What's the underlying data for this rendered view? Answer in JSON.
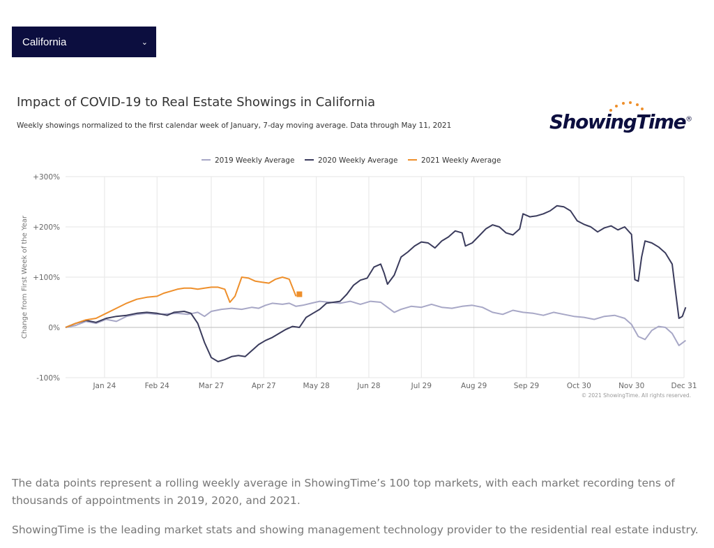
{
  "region_select": {
    "value": "California"
  },
  "header": {
    "title": "Impact of COVID-19 to Real Estate Showings in California",
    "subtitle": "Weekly showings normalized to the first calendar week of January, 7-day moving average. Data through May 11, 2021"
  },
  "logo": {
    "text": "ShowingTime",
    "mark": "®"
  },
  "colors": {
    "s2019": "#a7a7c6",
    "s2020": "#3a3b5c",
    "s2021": "#ee8f2b",
    "grid": "#e6e6e6",
    "select_bg": "#0c0e3f"
  },
  "chart_data": {
    "type": "line",
    "ylabel": "Change from First Week of the Year",
    "ylim": [
      -100,
      300
    ],
    "yticks": [
      "+300%",
      "+200%",
      "+100%",
      "0%",
      "-100%"
    ],
    "ytick_values": [
      300,
      200,
      100,
      0,
      -100
    ],
    "xlim": [
      0,
      365
    ],
    "xticks": [
      "Jan 24",
      "Feb 24",
      "Mar 27",
      "Apr 27",
      "May 28",
      "Jun 28",
      "Jul 29",
      "Aug 29",
      "Sep 29",
      "Oct 30",
      "Nov 30",
      "Dec 31"
    ],
    "xtick_days": [
      23,
      54,
      86,
      117,
      148,
      179,
      210,
      241,
      272,
      303,
      334,
      365
    ],
    "credit": "© 2021 ShowingTime. All rights reserved.",
    "grid": true,
    "legend": "top-center",
    "series": [
      {
        "name": "2019 Weekly Average",
        "points": [
          [
            0,
            0
          ],
          [
            6,
            4
          ],
          [
            12,
            12
          ],
          [
            18,
            8
          ],
          [
            24,
            16
          ],
          [
            30,
            12
          ],
          [
            36,
            22
          ],
          [
            42,
            26
          ],
          [
            48,
            28
          ],
          [
            54,
            26
          ],
          [
            60,
            27
          ],
          [
            66,
            28
          ],
          [
            72,
            26
          ],
          [
            78,
            30
          ],
          [
            82,
            22
          ],
          [
            86,
            32
          ],
          [
            92,
            36
          ],
          [
            98,
            38
          ],
          [
            104,
            36
          ],
          [
            110,
            40
          ],
          [
            114,
            38
          ],
          [
            118,
            44
          ],
          [
            122,
            48
          ],
          [
            128,
            46
          ],
          [
            132,
            48
          ],
          [
            136,
            42
          ],
          [
            140,
            44
          ],
          [
            145,
            48
          ],
          [
            150,
            52
          ],
          [
            156,
            50
          ],
          [
            162,
            48
          ],
          [
            168,
            52
          ],
          [
            174,
            46
          ],
          [
            180,
            52
          ],
          [
            186,
            50
          ],
          [
            190,
            40
          ],
          [
            194,
            30
          ],
          [
            198,
            36
          ],
          [
            204,
            42
          ],
          [
            210,
            40
          ],
          [
            216,
            46
          ],
          [
            222,
            40
          ],
          [
            228,
            38
          ],
          [
            234,
            42
          ],
          [
            240,
            44
          ],
          [
            246,
            40
          ],
          [
            252,
            30
          ],
          [
            258,
            26
          ],
          [
            264,
            34
          ],
          [
            270,
            30
          ],
          [
            276,
            28
          ],
          [
            282,
            24
          ],
          [
            288,
            30
          ],
          [
            294,
            26
          ],
          [
            300,
            22
          ],
          [
            306,
            20
          ],
          [
            312,
            16
          ],
          [
            318,
            22
          ],
          [
            324,
            24
          ],
          [
            330,
            18
          ],
          [
            334,
            6
          ],
          [
            338,
            -18
          ],
          [
            342,
            -24
          ],
          [
            346,
            -6
          ],
          [
            350,
            2
          ],
          [
            354,
            0
          ],
          [
            358,
            -12
          ],
          [
            362,
            -36
          ],
          [
            366,
            -26
          ]
        ]
      },
      {
        "name": "2020 Weekly Average",
        "points": [
          [
            0,
            0
          ],
          [
            6,
            8
          ],
          [
            12,
            14
          ],
          [
            18,
            10
          ],
          [
            24,
            18
          ],
          [
            30,
            22
          ],
          [
            36,
            24
          ],
          [
            42,
            28
          ],
          [
            48,
            30
          ],
          [
            54,
            28
          ],
          [
            60,
            24
          ],
          [
            64,
            30
          ],
          [
            70,
            32
          ],
          [
            74,
            28
          ],
          [
            78,
            8
          ],
          [
            82,
            -30
          ],
          [
            86,
            -60
          ],
          [
            90,
            -68
          ],
          [
            94,
            -64
          ],
          [
            98,
            -58
          ],
          [
            102,
            -56
          ],
          [
            106,
            -58
          ],
          [
            110,
            -46
          ],
          [
            114,
            -34
          ],
          [
            118,
            -26
          ],
          [
            122,
            -20
          ],
          [
            126,
            -12
          ],
          [
            130,
            -4
          ],
          [
            134,
            2
          ],
          [
            138,
            0
          ],
          [
            142,
            20
          ],
          [
            146,
            28
          ],
          [
            150,
            36
          ],
          [
            154,
            48
          ],
          [
            158,
            50
          ],
          [
            162,
            52
          ],
          [
            166,
            66
          ],
          [
            170,
            84
          ],
          [
            174,
            94
          ],
          [
            178,
            98
          ],
          [
            182,
            120
          ],
          [
            186,
            126
          ],
          [
            188,
            108
          ],
          [
            190,
            86
          ],
          [
            194,
            104
          ],
          [
            198,
            140
          ],
          [
            202,
            150
          ],
          [
            206,
            162
          ],
          [
            210,
            170
          ],
          [
            214,
            168
          ],
          [
            218,
            158
          ],
          [
            222,
            172
          ],
          [
            226,
            180
          ],
          [
            230,
            192
          ],
          [
            234,
            188
          ],
          [
            236,
            162
          ],
          [
            240,
            168
          ],
          [
            244,
            182
          ],
          [
            248,
            196
          ],
          [
            252,
            204
          ],
          [
            256,
            200
          ],
          [
            260,
            188
          ],
          [
            264,
            184
          ],
          [
            268,
            196
          ],
          [
            270,
            226
          ],
          [
            274,
            220
          ],
          [
            278,
            222
          ],
          [
            282,
            226
          ],
          [
            286,
            232
          ],
          [
            290,
            242
          ],
          [
            294,
            240
          ],
          [
            298,
            232
          ],
          [
            302,
            212
          ],
          [
            306,
            205
          ],
          [
            310,
            200
          ],
          [
            314,
            190
          ],
          [
            318,
            198
          ],
          [
            322,
            202
          ],
          [
            326,
            194
          ],
          [
            330,
            200
          ],
          [
            334,
            185
          ],
          [
            336,
            95
          ],
          [
            338,
            92
          ],
          [
            340,
            140
          ],
          [
            342,
            172
          ],
          [
            346,
            168
          ],
          [
            350,
            160
          ],
          [
            354,
            148
          ],
          [
            358,
            126
          ],
          [
            360,
            72
          ],
          [
            362,
            18
          ],
          [
            364,
            22
          ],
          [
            366,
            40
          ]
        ]
      },
      {
        "name": "2021 Weekly Average",
        "points": [
          [
            0,
            0
          ],
          [
            6,
            8
          ],
          [
            12,
            15
          ],
          [
            18,
            18
          ],
          [
            24,
            28
          ],
          [
            30,
            38
          ],
          [
            36,
            48
          ],
          [
            42,
            56
          ],
          [
            48,
            60
          ],
          [
            54,
            62
          ],
          [
            58,
            68
          ],
          [
            62,
            72
          ],
          [
            66,
            76
          ],
          [
            70,
            78
          ],
          [
            74,
            78
          ],
          [
            78,
            76
          ],
          [
            82,
            78
          ],
          [
            86,
            80
          ],
          [
            90,
            80
          ],
          [
            94,
            76
          ],
          [
            97,
            50
          ],
          [
            100,
            62
          ],
          [
            104,
            100
          ],
          [
            108,
            98
          ],
          [
            112,
            92
          ],
          [
            116,
            90
          ],
          [
            120,
            88
          ],
          [
            124,
            96
          ],
          [
            128,
            100
          ],
          [
            132,
            96
          ],
          [
            136,
            62
          ]
        ],
        "last_marker": [
          138,
          66
        ]
      }
    ]
  },
  "paragraphs": [
    "The data points represent a rolling weekly average in ShowingTime’s 100 top markets, with each market recording tens of thousands of appointments in 2019, 2020, and 2021.",
    "ShowingTime is the leading market stats and showing management technology provider to the residential real estate industry."
  ]
}
